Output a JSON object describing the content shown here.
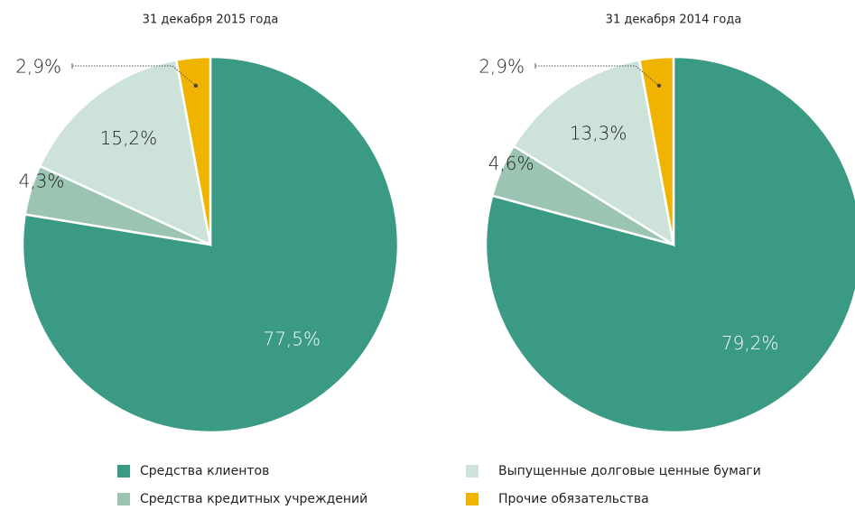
{
  "legend": {
    "items": [
      "Средства клиентов",
      "Средства кредитных учреждений",
      "Выпущенные долговые ценные бумаги",
      "Прочие обязательства"
    ],
    "colors": [
      "#3a9a84",
      "#9cc4b2",
      "#cde2d9",
      "#f0b400"
    ]
  },
  "chart_data": [
    {
      "type": "pie",
      "title": "31 декабря 2015 года",
      "values": [
        77.5,
        4.3,
        15.2,
        2.9
      ],
      "value_labels": [
        "77,5%",
        "4,3%",
        "15,2%",
        "2,9%"
      ]
    },
    {
      "type": "pie",
      "title": "31 декабря 2014 года",
      "values": [
        79.2,
        4.6,
        13.3,
        2.9
      ],
      "value_labels": [
        "79,2%",
        "4,6%",
        "13,3%",
        "2,9%"
      ]
    }
  ]
}
